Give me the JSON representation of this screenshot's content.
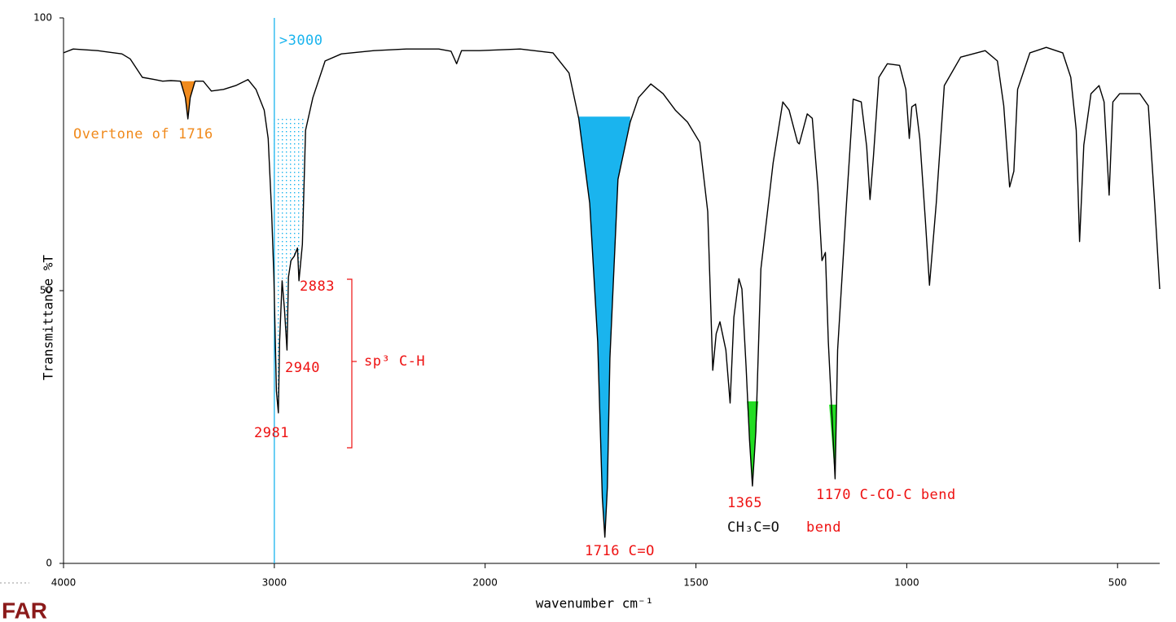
{
  "chart_data": {
    "type": "line",
    "ylabel": "Transmittance %T",
    "xlabel": "wavenumber cm⁻¹",
    "x": [
      4000,
      3954,
      3838,
      3723,
      3684,
      3626,
      3568,
      3530,
      3491,
      3445,
      3422,
      3410,
      3399,
      3376,
      3337,
      3299,
      3241,
      3183,
      3125,
      3087,
      3048,
      3029,
      3013,
      3002,
      2990,
      2981,
      2975,
      2963,
      2952,
      2940,
      2933,
      2921,
      2906,
      2890,
      2883,
      2867,
      2852,
      2817,
      2759,
      2682,
      2528,
      2374,
      2220,
      2162,
      2135,
      2112,
      2027,
      1917,
      1839,
      1801,
      1778,
      1752,
      1733,
      1722,
      1716,
      1710,
      1704,
      1685,
      1656,
      1636,
      1607,
      1578,
      1549,
      1520,
      1491,
      1472,
      1460,
      1452,
      1443,
      1429,
      1419,
      1410,
      1398,
      1391,
      1381,
      1373,
      1366,
      1358,
      1346,
      1317,
      1294,
      1279,
      1259,
      1255,
      1236,
      1224,
      1211,
      1201,
      1193,
      1186,
      1170,
      1164,
      1143,
      1127,
      1108,
      1095,
      1087,
      1079,
      1066,
      1046,
      1017,
      1002,
      994,
      988,
      979,
      969,
      956,
      946,
      930,
      911,
      872,
      814,
      785,
      770,
      756,
      746,
      737,
      708,
      669,
      630,
      611,
      598,
      590,
      580,
      563,
      544,
      532,
      520,
      511,
      495,
      447,
      427,
      412,
      400
    ],
    "values": [
      93.6,
      94.3,
      94.0,
      93.4,
      92.5,
      89.1,
      88.7,
      88.4,
      88.5,
      88.4,
      85.4,
      81.5,
      85.4,
      88.4,
      88.4,
      86.6,
      86.9,
      87.6,
      88.7,
      86.9,
      83.1,
      77.9,
      64.5,
      52.5,
      31.6,
      27.6,
      40.6,
      51.8,
      46.6,
      39.1,
      52.5,
      55.5,
      56.3,
      57.8,
      51.8,
      58.5,
      79.4,
      85.4,
      92.1,
      93.4,
      94.0,
      94.3,
      94.3,
      93.9,
      91.6,
      94.0,
      94.0,
      94.3,
      93.6,
      89.9,
      81.6,
      66.0,
      40.6,
      12.0,
      4.8,
      14.0,
      37.6,
      70.4,
      80.9,
      85.4,
      87.9,
      86.1,
      83.1,
      80.9,
      77.2,
      64.5,
      35.4,
      42.1,
      44.3,
      39.1,
      29.4,
      45.1,
      52.2,
      50.3,
      36.1,
      22.7,
      14.2,
      24.2,
      54.0,
      73.4,
      84.6,
      83.1,
      77.2,
      76.9,
      82.4,
      81.6,
      69.0,
      55.5,
      57.0,
      40.6,
      15.5,
      39.1,
      66.0,
      85.1,
      84.6,
      76.4,
      66.7,
      74.6,
      89.1,
      91.6,
      91.3,
      86.9,
      77.9,
      83.7,
      84.2,
      77.9,
      63.0,
      51.0,
      66.0,
      87.6,
      92.8,
      94.0,
      92.1,
      83.9,
      69.0,
      71.9,
      86.9,
      93.6,
      94.6,
      93.6,
      89.1,
      79.4,
      59.0,
      76.7,
      86.1,
      87.6,
      84.6,
      67.5,
      84.6,
      86.1,
      86.1,
      83.9,
      66.0,
      50.3
    ],
    "color": "#000000",
    "xlim": [
      4000,
      400
    ],
    "ylim": [
      0,
      100
    ],
    "xticks": [
      4000,
      3000,
      2000,
      1500,
      1000,
      500
    ],
    "yticks": [
      0,
      50,
      100
    ],
    "vline": {
      "x": 3000,
      "label": ">3000",
      "color": "#1ab4ee"
    },
    "highlights": [
      {
        "xlim": [
          3453,
          3376
        ],
        "level": 88.4,
        "color": "#f08a1c"
      },
      {
        "xlim": [
          3002,
          2856
        ],
        "level": 81.6,
        "color": "#1ab4ee",
        "style": "dotted"
      },
      {
        "xlim": [
          1780,
          1656
        ],
        "level": 81.9,
        "color": "#1ab4ee"
      },
      {
        "xlim": [
          1379,
          1352
        ],
        "level": 29.7,
        "color": "#22dd22"
      },
      {
        "xlim": [
          1184,
          1166
        ],
        "level": 29.1,
        "color": "#22dd22"
      }
    ],
    "annotations": [
      {
        "text": "Overtone of 1716",
        "color": "#f08a1c"
      },
      {
        "text": "2883",
        "color": "#ee1111"
      },
      {
        "text": "2940",
        "color": "#ee1111"
      },
      {
        "text": "2981",
        "color": "#ee1111"
      },
      {
        "text": "sp³ C-H",
        "color": "#ee1111"
      },
      {
        "text": "1716  C=O",
        "color": "#ee1111"
      },
      {
        "text": "1365",
        "color": "#ee1111"
      },
      {
        "text": "CH₃C=O",
        "color": "#111111"
      },
      {
        "text": "bend",
        "color": "#ee1111"
      },
      {
        "text": "1170 C-CO-C bend",
        "color": "#ee1111"
      }
    ]
  },
  "logo": "FAR"
}
